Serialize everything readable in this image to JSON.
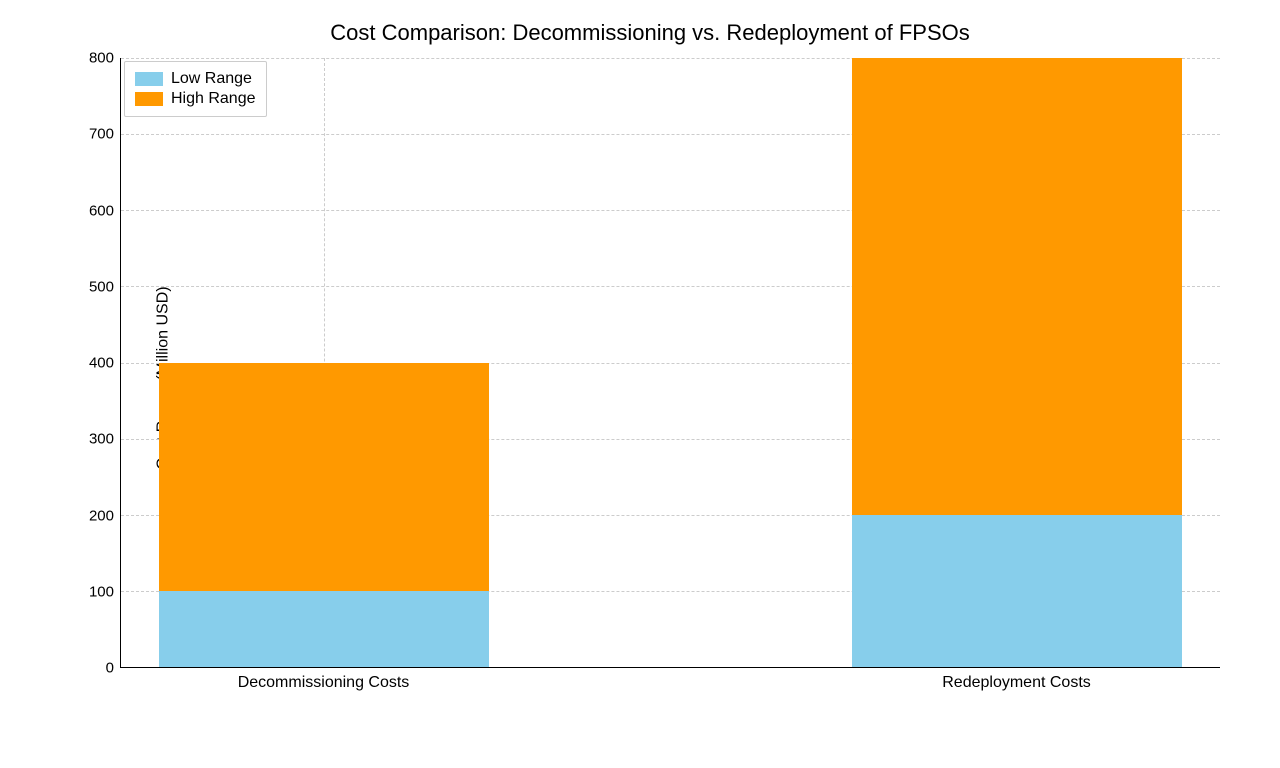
{
  "chart": {
    "type": "bar",
    "title": "Cost Comparison: Decommissioning vs. Redeployment of FPSOs",
    "title_fontsize": 22,
    "ylabel": "Cost Range (Million USD)",
    "label_fontsize": 16,
    "tick_fontsize": 15,
    "background_color": "#ffffff",
    "grid_color": "#cccccc",
    "grid_dash": true,
    "axis_color": "#000000",
    "ylim": [
      0,
      800
    ],
    "ytick_step": 100,
    "yticks": [
      0,
      100,
      200,
      300,
      400,
      500,
      600,
      700,
      800
    ],
    "categories": [
      "Decommissioning Costs",
      "Redeployment Costs"
    ],
    "category_positions_pct": [
      18.5,
      81.5
    ],
    "bar_width_pct": 30,
    "series": {
      "low": {
        "label": "Low Range",
        "color": "#87ceeb",
        "values": [
          100,
          200
        ]
      },
      "high": {
        "label": "High Range",
        "color": "#ff9900",
        "values": [
          400,
          800
        ]
      }
    },
    "legend": {
      "position": "upper-left",
      "items": [
        "low",
        "high"
      ]
    }
  }
}
